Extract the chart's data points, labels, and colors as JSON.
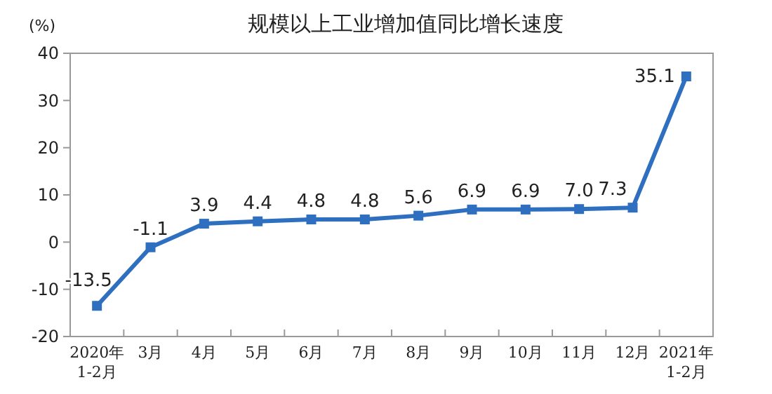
{
  "chart_data": {
    "type": "line",
    "title": "规模以上工业增加值同比增长速度",
    "ylabel": "(%)",
    "categories": [
      "2020年\n1-2月",
      "3月",
      "4月",
      "5月",
      "6月",
      "7月",
      "8月",
      "9月",
      "10月",
      "11月",
      "12月",
      "2021年\n1-2月"
    ],
    "series": [
      {
        "color": "#2e6fc0",
        "values": [
          -13.5,
          -1.1,
          3.9,
          4.4,
          4.8,
          4.8,
          5.6,
          6.9,
          6.9,
          7.0,
          7.3,
          35.1
        ]
      }
    ],
    "value_labels": [
      "-13.5",
      "-1.1",
      "3.9",
      "4.4",
      "4.8",
      "4.8",
      "5.6",
      "6.9",
      "6.9",
      "7.0",
      "7.3",
      "35.1"
    ],
    "ylim": [
      -20,
      40
    ],
    "yticks": [
      -20,
      -10,
      0,
      10,
      20,
      30,
      40
    ],
    "marker": "square",
    "line_style": "solid",
    "grid": false
  }
}
